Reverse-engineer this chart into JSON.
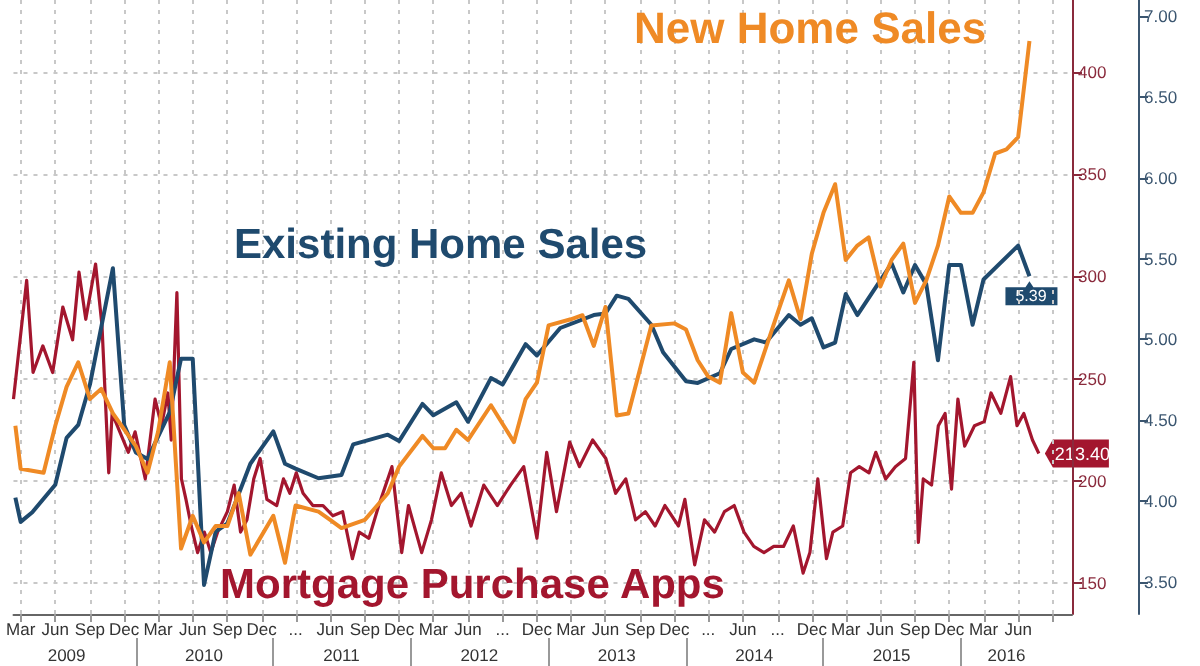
{
  "chart_data": {
    "type": "line",
    "grid": true,
    "xlim": [
      "2009-02-10",
      "2016-10-22"
    ],
    "xticks": [
      {
        "value": "2009-03-01",
        "label": "Mar"
      },
      {
        "value": "2009-06-01",
        "label": "Jun"
      },
      {
        "value": "2009-09-01",
        "label": "Sep"
      },
      {
        "value": "2009-12-01",
        "label": "Dec"
      },
      {
        "value": "2010-03-01",
        "label": "Mar"
      },
      {
        "value": "2010-06-01",
        "label": "Jun"
      },
      {
        "value": "2010-09-01",
        "label": "Sep"
      },
      {
        "value": "2010-12-01",
        "label": "Dec"
      },
      {
        "value": "2011-03-01",
        "label": "..."
      },
      {
        "value": "2011-06-01",
        "label": "Jun"
      },
      {
        "value": "2011-09-01",
        "label": "Sep"
      },
      {
        "value": "2011-12-01",
        "label": "Dec"
      },
      {
        "value": "2012-03-01",
        "label": "Mar"
      },
      {
        "value": "2012-06-01",
        "label": "Jun"
      },
      {
        "value": "2012-09-01",
        "label": "..."
      },
      {
        "value": "2012-12-01",
        "label": "Dec"
      },
      {
        "value": "2013-03-01",
        "label": "Mar"
      },
      {
        "value": "2013-06-01",
        "label": "Jun"
      },
      {
        "value": "2013-09-01",
        "label": "Sep"
      },
      {
        "value": "2013-12-01",
        "label": "Dec"
      },
      {
        "value": "2014-03-01",
        "label": "..."
      },
      {
        "value": "2014-06-01",
        "label": "Jun"
      },
      {
        "value": "2014-09-01",
        "label": "..."
      },
      {
        "value": "2014-12-01",
        "label": "Dec"
      },
      {
        "value": "2015-03-01",
        "label": "Mar"
      },
      {
        "value": "2015-06-01",
        "label": "Jun"
      },
      {
        "value": "2015-09-01",
        "label": "Sep"
      },
      {
        "value": "2015-12-01",
        "label": "Dec"
      },
      {
        "value": "2016-03-01",
        "label": "Mar"
      },
      {
        "value": "2016-06-01",
        "label": "Jun"
      },
      {
        "value": "2016-09-01",
        "label": null
      }
    ],
    "x2lim": [
      "2009-02-10",
      "2016-10-22"
    ],
    "x2ticks": [
      {
        "value": "2009-07-01",
        "label": "2009"
      },
      {
        "value": "2010-01-01",
        "label": null
      },
      {
        "value": "2010-07-01",
        "label": "2010"
      },
      {
        "value": "2011-01-01",
        "label": null
      },
      {
        "value": "2011-07-01",
        "label": "2011"
      },
      {
        "value": "2012-01-01",
        "label": null
      },
      {
        "value": "2012-07-01",
        "label": "2012"
      },
      {
        "value": "2013-01-01",
        "label": null
      },
      {
        "value": "2013-07-01",
        "label": "2013"
      },
      {
        "value": "2014-01-01",
        "label": null
      },
      {
        "value": "2014-07-01",
        "label": "2014"
      },
      {
        "value": "2015-01-01",
        "label": null
      },
      {
        "value": "2015-07-01",
        "label": "2015"
      },
      {
        "value": "2016-01-01",
        "label": null
      },
      {
        "value": "2016-05-01",
        "label": "2016"
      }
    ],
    "ylim": [
      3.3,
      7.1
    ],
    "yticks": [
      {
        "value": 3.5,
        "label": "3.50"
      },
      {
        "value": 4,
        "label": "4.00"
      },
      {
        "value": 4.5,
        "label": "4.50"
      },
      {
        "value": 5,
        "label": "5.00"
      },
      {
        "value": 5.5,
        "label": "5.50"
      },
      {
        "value": 6,
        "label": "6.00"
      },
      {
        "value": 6.5,
        "label": "6.50"
      },
      {
        "value": 7,
        "label": "7.00"
      }
    ],
    "y2lim": [
      135,
      435
    ],
    "y2ticks": [
      150,
      200,
      250,
      300,
      350,
      400
    ],
    "series": [
      {
        "name": "Mortgage Purchase Apps",
        "color": "#a3162e",
        "axis": "y2",
        "x": [
          "2009-02-10",
          "2009-03-17",
          "2009-04-03",
          "2009-04-29",
          "2009-05-25",
          "2009-06-21",
          "2009-07-17",
          "2009-08-03",
          "2009-08-21",
          "2009-09-16",
          "2009-10-03",
          "2009-10-21",
          "2009-10-30",
          "2009-12-12",
          "2009-12-30",
          "2010-01-26",
          "2010-02-21",
          "2010-03-10",
          "2010-03-27",
          "2010-04-05",
          "2010-04-20",
          "2010-05-02",
          "2010-05-14",
          "2010-05-28",
          "2010-06-14",
          "2010-07-02",
          "2010-07-19",
          "2010-08-06",
          "2010-09-01",
          "2010-09-19",
          "2010-10-06",
          "2010-10-23",
          "2010-11-10",
          "2010-11-27",
          "2010-12-15",
          "2011-01-10",
          "2011-01-28",
          "2011-02-14",
          "2011-03-03",
          "2011-03-21",
          "2011-04-16",
          "2011-05-13",
          "2011-06-08",
          "2011-07-04",
          "2011-07-30",
          "2011-08-17",
          "2011-09-12",
          "2011-10-08",
          "2011-11-12",
          "2011-12-08",
          "2011-12-26",
          "2012-01-30",
          "2012-02-25",
          "2012-03-22",
          "2012-04-18",
          "2012-05-14",
          "2012-06-09",
          "2012-07-13",
          "2012-08-18",
          "2012-09-22",
          "2012-10-27",
          "2012-12-01",
          "2012-12-27",
          "2013-01-22",
          "2013-02-26",
          "2013-03-24",
          "2013-04-28",
          "2013-06-02",
          "2013-06-28",
          "2013-07-25",
          "2013-08-20",
          "2013-09-15",
          "2013-10-11",
          "2013-11-06",
          "2013-12-12",
          "2013-12-29",
          "2014-01-24",
          "2014-02-19",
          "2014-03-18",
          "2014-04-13",
          "2014-05-09",
          "2014-06-04",
          "2014-06-30",
          "2014-07-27",
          "2014-08-22",
          "2014-09-17",
          "2014-10-13",
          "2014-11-08",
          "2014-11-26",
          "2014-12-17",
          "2015-01-09",
          "2015-01-26",
          "2015-02-21",
          "2015-03-14",
          "2015-04-06",
          "2015-05-02",
          "2015-05-20",
          "2015-06-15",
          "2015-07-11",
          "2015-08-07",
          "2015-08-29",
          "2015-09-10",
          "2015-09-23",
          "2015-10-15",
          "2015-11-02",
          "2015-11-20",
          "2015-12-07",
          "2015-12-24",
          "2016-01-11",
          "2016-02-06",
          "2016-03-03",
          "2016-03-21",
          "2016-04-16",
          "2016-05-12",
          "2016-05-29",
          "2016-06-16",
          "2016-07-09",
          "2016-07-26"
        ],
        "values": [
          240,
          298,
          253,
          266,
          253,
          285,
          269,
          302,
          279,
          306,
          276,
          204,
          233,
          214,
          224,
          201,
          240,
          227,
          243,
          220,
          292,
          201,
          191,
          178,
          165,
          175,
          165,
          175,
          185,
          198,
          175,
          181,
          201,
          211,
          191,
          188,
          201,
          194,
          204,
          194,
          188,
          188,
          183,
          185,
          162,
          175,
          172,
          188,
          207,
          165,
          188,
          165,
          181,
          204,
          188,
          194,
          178,
          198,
          188,
          198,
          207,
          172,
          214,
          185,
          219,
          207,
          220,
          211,
          194,
          201,
          181,
          185,
          178,
          188,
          178,
          191,
          159,
          181,
          175,
          185,
          188,
          175,
          168,
          165,
          168,
          168,
          178,
          155,
          165,
          201,
          162,
          175,
          178,
          204,
          207,
          204,
          214,
          201,
          207,
          211,
          258,
          170,
          201,
          198,
          227,
          233,
          196,
          240,
          217,
          227,
          229,
          243,
          233,
          251,
          227,
          233,
          220,
          213.4
        ],
        "value_labels": [
          null,
          null,
          null,
          null,
          null,
          null,
          null,
          null,
          null,
          null,
          null,
          null,
          null,
          null,
          null,
          null,
          null,
          null,
          null,
          null,
          null,
          null,
          null,
          null,
          null,
          null,
          null,
          null,
          null,
          null,
          null,
          null,
          null,
          null,
          null,
          null,
          null,
          null,
          null,
          null,
          null,
          null,
          null,
          null,
          null,
          null,
          null,
          null,
          null,
          null,
          null,
          null,
          null,
          null,
          null,
          null,
          null,
          null,
          null,
          null,
          null,
          null,
          null,
          null,
          null,
          null,
          null,
          null,
          null,
          null,
          null,
          null,
          null,
          null,
          null,
          null,
          null,
          null,
          null,
          null,
          null,
          null,
          null,
          null,
          null,
          null,
          null,
          null,
          null,
          null,
          null,
          null,
          null,
          null,
          null,
          null,
          null,
          null,
          null,
          null,
          null,
          null,
          null,
          null,
          null,
          null,
          null,
          null,
          null,
          null,
          null,
          null,
          null,
          null,
          null,
          null,
          null,
          "213.40"
        ]
      },
      {
        "name": "Existing Home Sales",
        "color": "#1f4a6e",
        "axis": "y",
        "x": [
          "2009-02-15",
          "2009-03",
          "2009-04",
          "2009-06",
          "2009-07",
          "2009-08",
          "2009-09",
          "2009-11",
          "2009-12",
          "2010-01",
          "2010-02",
          "2010-04",
          "2010-05",
          "2010-06",
          "2010-07",
          "2010-08",
          "2010-09",
          "2010-11",
          "2011-01",
          "2011-02",
          "2011-03",
          "2011-05",
          "2011-07",
          "2011-08",
          "2011-09",
          "2011-11",
          "2011-12",
          "2012-02",
          "2012-03",
          "2012-05",
          "2012-06",
          "2012-08",
          "2012-09",
          "2012-11",
          "2012-12",
          "2013-02",
          "2013-05",
          "2013-06",
          "2013-07",
          "2013-08",
          "2013-10",
          "2013-11",
          "2014-01",
          "2014-02",
          "2014-04",
          "2014-05",
          "2014-07",
          "2014-08",
          "2014-10",
          "2014-11",
          "2014-12",
          "2015-01",
          "2015-02",
          "2015-03",
          "2015-04",
          "2015-07",
          "2015-08",
          "2015-09",
          "2015-10",
          "2015-11",
          "2015-12",
          "2016-01",
          "2016-02",
          "2016-03",
          "2016-06",
          "2016-07"
        ],
        "values": [
          4.02,
          3.87,
          3.93,
          4.1,
          4.39,
          4.47,
          4.72,
          5.44,
          4.47,
          4.3,
          4.26,
          4.55,
          4.88,
          4.88,
          3.48,
          3.81,
          3.86,
          4.23,
          4.43,
          4.23,
          4.2,
          4.14,
          4.16,
          4.35,
          4.37,
          4.41,
          4.37,
          4.6,
          4.53,
          4.61,
          4.49,
          4.76,
          4.72,
          4.97,
          4.9,
          5.07,
          5.15,
          5.16,
          5.27,
          5.25,
          5.09,
          4.92,
          4.74,
          4.73,
          4.79,
          4.94,
          5.0,
          4.98,
          5.15,
          5.09,
          5.13,
          4.95,
          4.98,
          5.28,
          5.15,
          5.47,
          5.29,
          5.46,
          5.34,
          4.87,
          5.46,
          5.46,
          5.09,
          5.37,
          5.58,
          5.39
        ],
        "value_labels": [
          null,
          null,
          null,
          null,
          null,
          null,
          null,
          null,
          null,
          null,
          null,
          null,
          null,
          null,
          null,
          null,
          null,
          null,
          null,
          null,
          null,
          null,
          null,
          null,
          null,
          null,
          null,
          null,
          null,
          null,
          null,
          null,
          null,
          null,
          null,
          null,
          null,
          null,
          null,
          null,
          null,
          null,
          null,
          null,
          null,
          null,
          null,
          null,
          null,
          null,
          null,
          null,
          null,
          null,
          null,
          null,
          null,
          null,
          null,
          null,
          null,
          null,
          null,
          null,
          null,
          "5.39"
        ]
      },
      {
        "name": "New Home Sales",
        "color": "#ef8a25",
        "axis": "y2",
        "x": [
          "2009-02-15",
          "2009-03",
          "2009-05",
          "2009-06",
          "2009-07",
          "2009-08",
          "2009-09",
          "2009-10",
          "2009-11",
          "2010-01",
          "2010-02",
          "2010-03",
          "2010-04",
          "2010-05",
          "2010-06",
          "2010-07",
          "2010-08",
          "2010-09",
          "2010-10",
          "2010-11",
          "2011-01",
          "2011-02",
          "2011-03",
          "2011-05",
          "2011-06",
          "2011-07",
          "2011-09",
          "2011-11",
          "2011-12",
          "2012-02",
          "2012-03",
          "2012-04",
          "2012-05",
          "2012-06",
          "2012-08",
          "2012-10",
          "2012-11",
          "2012-12",
          "2013-01",
          "2013-03",
          "2013-04",
          "2013-05",
          "2013-06",
          "2013-07",
          "2013-08",
          "2013-10",
          "2013-12",
          "2014-01",
          "2014-02",
          "2014-03",
          "2014-04",
          "2014-05",
          "2014-06",
          "2014-07",
          "2014-09",
          "2014-10",
          "2014-11",
          "2014-12",
          "2015-01",
          "2015-02",
          "2015-03",
          "2015-04",
          "2015-05",
          "2015-06",
          "2015-07",
          "2015-08",
          "2015-09",
          "2015-10",
          "2015-11",
          "2015-12",
          "2016-01",
          "2016-02",
          "2016-03",
          "2016-04",
          "2016-05",
          "2016-06",
          "2016-07"
        ],
        "values": [
          227,
          206,
          204,
          227,
          246,
          258,
          240,
          245,
          233,
          217,
          204,
          224,
          258,
          167,
          183,
          170,
          178,
          178,
          194,
          164,
          183,
          160,
          188,
          185,
          181,
          177,
          181,
          194,
          207,
          222,
          216,
          216,
          225,
          220,
          237,
          219,
          240,
          248,
          276,
          279,
          281,
          266,
          285,
          232,
          233,
          276,
          277,
          274,
          259,
          251,
          248,
          282,
          253,
          248,
          282,
          298,
          279,
          311,
          331,
          345,
          308,
          315,
          319,
          295,
          308,
          316,
          287,
          298,
          315,
          339,
          331,
          331,
          341,
          360,
          362,
          368,
          415
        ]
      }
    ]
  }
}
